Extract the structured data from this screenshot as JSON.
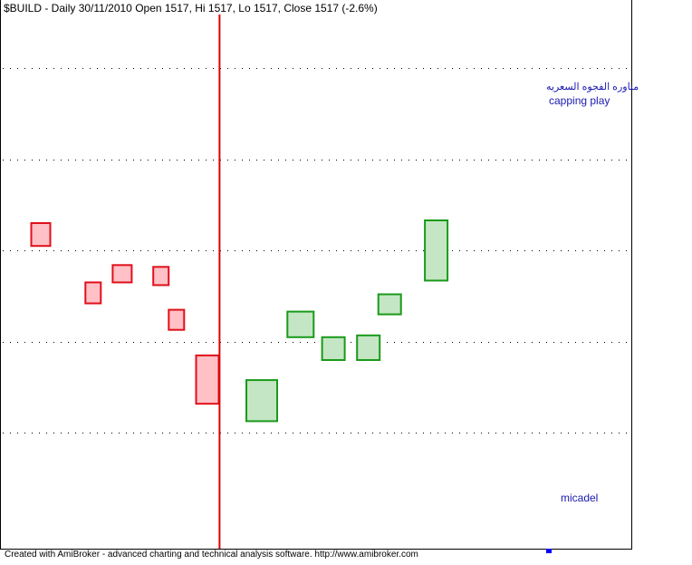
{
  "title": "$BUILD - Daily 30/11/2010 Open 1517, Hi 1517, Lo 1517, Close 1517 (-2.6%)",
  "annotations": {
    "arabic": "مناوره الفجوه السعريه",
    "english": "capping play",
    "author": "micadel"
  },
  "footer": "Created with AmiBroker - advanced charting and technical analysis software. http://www.amibroker.com",
  "colors": {
    "down_fill": "#ffc0c6",
    "down_border": "#e0101a",
    "up_fill": "#c4e6c4",
    "up_border": "#1a9a1a",
    "vline": "#e00000",
    "note": "#1a1ab0",
    "marker": "#0000ff",
    "grid": "#000000",
    "frame": "#000000"
  },
  "chart_data": {
    "type": "candlestick",
    "title": "$BUILD - Daily 30/11/2010 Open 1517, Hi 1517, Lo 1517, Close 1517 (-2.6%)",
    "y_axis_labels": [],
    "grid": "horizontal dotted",
    "ylim": [
      0,
      6
    ],
    "gridlines": [
      1,
      2,
      3,
      4,
      5
    ],
    "vertical_marker_index": 4.6,
    "candles": [
      {
        "index": 0,
        "open": 3.3,
        "close": 3.05,
        "direction": "down"
      },
      {
        "index": 1.35,
        "open": 2.65,
        "close": 2.42,
        "direction": "down"
      },
      {
        "index": 2.1,
        "open": 2.84,
        "close": 2.65,
        "direction": "down"
      },
      {
        "index": 3.1,
        "open": 2.82,
        "close": 2.62,
        "direction": "down"
      },
      {
        "index": 3.5,
        "open": 2.35,
        "close": 2.13,
        "direction": "down"
      },
      {
        "index": 4.3,
        "open": 1.85,
        "close": 1.32,
        "direction": "down"
      },
      {
        "index": 5.7,
        "open": 1.13,
        "close": 1.58,
        "direction": "up"
      },
      {
        "index": 6.7,
        "open": 2.05,
        "close": 2.33,
        "direction": "up"
      },
      {
        "index": 7.55,
        "open": 1.8,
        "close": 2.05,
        "direction": "up"
      },
      {
        "index": 8.45,
        "open": 1.8,
        "close": 2.07,
        "direction": "up"
      },
      {
        "index": 9.0,
        "open": 2.3,
        "close": 2.52,
        "direction": "up"
      },
      {
        "index": 10.2,
        "open": 2.67,
        "close": 3.33,
        "direction": "up"
      }
    ]
  }
}
